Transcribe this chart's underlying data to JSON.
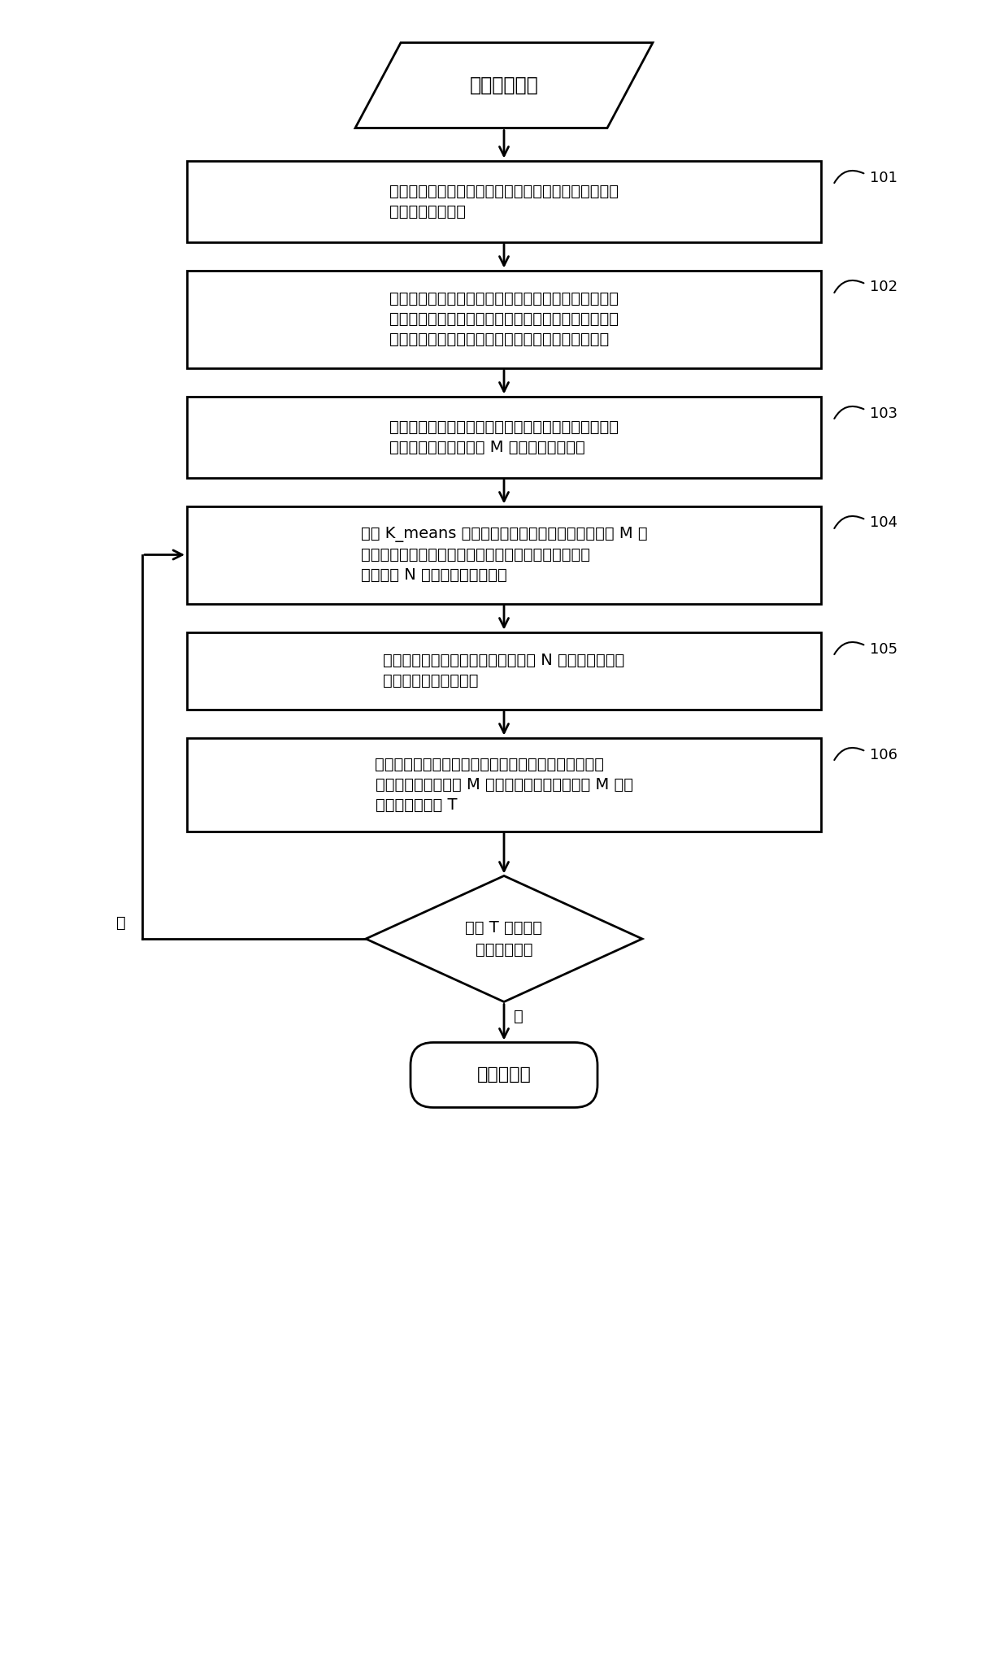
{
  "bg_color": "#ffffff",
  "box_edge_color": "#000000",
  "text_color": "#000000",
  "font_size": 14,
  "label_font_size": 13,
  "parallelogram": {
    "text": "未标注数据集"
  },
  "boxes": [
    {
      "id": "box1",
      "text": "选择一定数量的未标注样本，进行标注。将标记好的数\n据加入到训练集中",
      "label": "101"
    },
    {
      "id": "box2",
      "text": "计算训练集中的正负类样本的数量比例，将正类样本的\n比例作为训练负样本的权重，将负类样本的比例作为训\n练正样本的权重。选用合适的机器学习模型进行训练",
      "label": "102"
    },
    {
      "id": "box3",
      "text": "根据训练好的分类器对未标注数据样本进行预测，按不\n确定度大小顺序，选取 M 个最不确定的样本",
      "label": "103"
    },
    {
      "id": "box4",
      "text": "根据 K_means 算法计算训练集的中心点，分别计算 M 个\n最不确定样本与中心点的欧式距离之和，根据距离大小\n顺序选择 N 个样本点，进行标注",
      "label": "104"
    },
    {
      "id": "box5",
      "text": "更新未标注数据样本，将已标注过的 N 个样本加入到训\n练集中，更新分类模型",
      "label": "105"
    },
    {
      "id": "box6",
      "text": "根据训练好的分类器对未标注数据集进行预测，按不确\n定度大小顺序，选取 M 个最不确定的样本，计算 M 个不\n确定度的平均値 T",
      "label": "106"
    }
  ],
  "diamond": {
    "text": "判断 T 是否小于\n不确定度阈値",
    "no_label": "否",
    "yes_label": "是"
  },
  "terminal": {
    "text": "最终分类器"
  }
}
